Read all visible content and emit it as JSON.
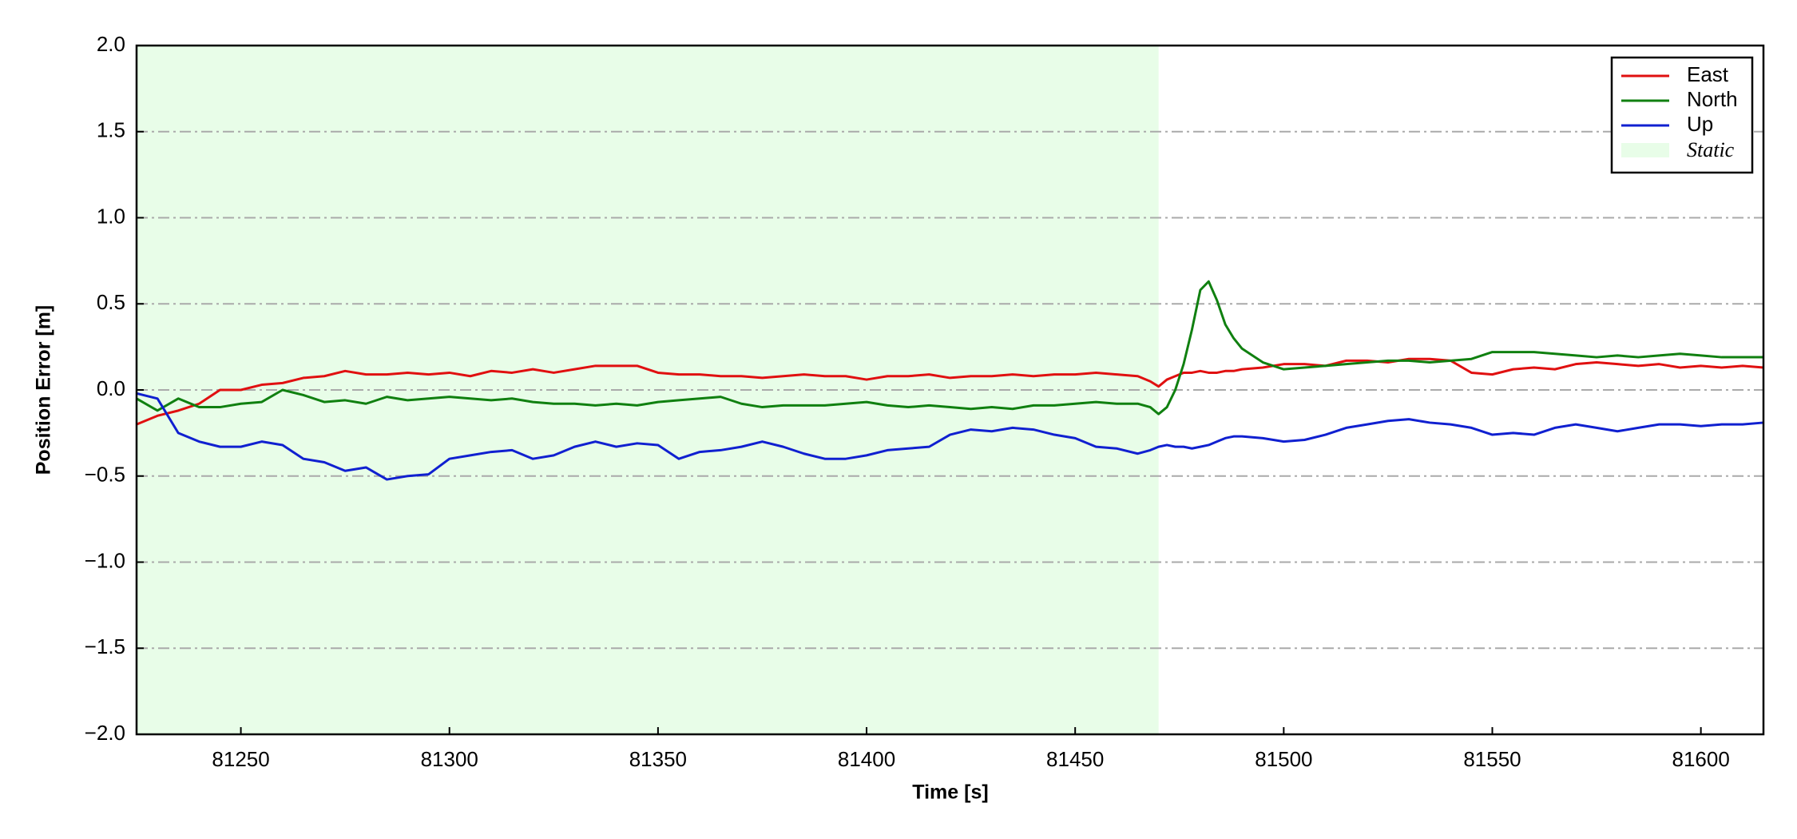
{
  "chart_data": {
    "type": "line",
    "xlabel": "Time [s]",
    "ylabel": "Position Error [m]",
    "xlim": [
      81225,
      81615
    ],
    "ylim": [
      -2.0,
      2.0
    ],
    "xticks": [
      81250,
      81300,
      81350,
      81400,
      81450,
      81500,
      81550,
      81600
    ],
    "yticks": [
      {
        "value": -2.0,
        "label": "−2.0"
      },
      {
        "value": -1.5,
        "label": "−1.5"
      },
      {
        "value": -1.0,
        "label": "−1.0"
      },
      {
        "value": -0.5,
        "label": "−0.5"
      },
      {
        "value": 0.0,
        "label": "0.0"
      },
      {
        "value": 0.5,
        "label": "0.5"
      },
      {
        "value": 1.0,
        "label": "1.0"
      },
      {
        "value": 1.5,
        "label": "1.5"
      },
      {
        "value": 2.0,
        "label": "2.0"
      }
    ],
    "grid": "y",
    "legend": "upper right",
    "shaded_regions": [
      {
        "name": "Static",
        "x": [
          81225,
          81470
        ],
        "color": "#e8fde8"
      }
    ],
    "x": [
      81225,
      81230,
      81235,
      81240,
      81245,
      81250,
      81255,
      81260,
      81265,
      81270,
      81275,
      81280,
      81285,
      81290,
      81295,
      81300,
      81305,
      81310,
      81315,
      81320,
      81325,
      81330,
      81335,
      81340,
      81345,
      81350,
      81355,
      81360,
      81365,
      81370,
      81375,
      81380,
      81385,
      81390,
      81395,
      81400,
      81405,
      81410,
      81415,
      81420,
      81425,
      81430,
      81435,
      81440,
      81445,
      81450,
      81455,
      81460,
      81465,
      81468,
      81470,
      81472,
      81474,
      81476,
      81478,
      81480,
      81482,
      81484,
      81486,
      81488,
      81490,
      81495,
      81500,
      81505,
      81510,
      81515,
      81520,
      81525,
      81530,
      81535,
      81540,
      81545,
      81550,
      81555,
      81560,
      81565,
      81570,
      81575,
      81580,
      81585,
      81590,
      81595,
      81600,
      81605,
      81610,
      81615
    ],
    "series": [
      {
        "name": "East",
        "color": "#e01010",
        "values": [
          -0.2,
          -0.15,
          -0.12,
          -0.08,
          0.0,
          0.0,
          0.03,
          0.04,
          0.07,
          0.08,
          0.11,
          0.09,
          0.09,
          0.1,
          0.09,
          0.1,
          0.08,
          0.11,
          0.1,
          0.12,
          0.1,
          0.12,
          0.14,
          0.14,
          0.14,
          0.1,
          0.09,
          0.09,
          0.08,
          0.08,
          0.07,
          0.08,
          0.09,
          0.08,
          0.08,
          0.06,
          0.08,
          0.08,
          0.09,
          0.07,
          0.08,
          0.08,
          0.09,
          0.08,
          0.09,
          0.09,
          0.1,
          0.09,
          0.08,
          0.05,
          0.02,
          0.06,
          0.08,
          0.1,
          0.1,
          0.11,
          0.1,
          0.1,
          0.11,
          0.11,
          0.12,
          0.13,
          0.15,
          0.15,
          0.14,
          0.17,
          0.17,
          0.16,
          0.18,
          0.18,
          0.17,
          0.1,
          0.09,
          0.12,
          0.13,
          0.12,
          0.15,
          0.16,
          0.15,
          0.14,
          0.15,
          0.13,
          0.14,
          0.13,
          0.14,
          0.13
        ]
      },
      {
        "name": "North",
        "color": "#108010",
        "values": [
          -0.05,
          -0.12,
          -0.05,
          -0.1,
          -0.1,
          -0.08,
          -0.07,
          0.0,
          -0.03,
          -0.07,
          -0.06,
          -0.08,
          -0.04,
          -0.06,
          -0.05,
          -0.04,
          -0.05,
          -0.06,
          -0.05,
          -0.07,
          -0.08,
          -0.08,
          -0.09,
          -0.08,
          -0.09,
          -0.07,
          -0.06,
          -0.05,
          -0.04,
          -0.08,
          -0.1,
          -0.09,
          -0.09,
          -0.09,
          -0.08,
          -0.07,
          -0.09,
          -0.1,
          -0.09,
          -0.1,
          -0.11,
          -0.1,
          -0.11,
          -0.09,
          -0.09,
          -0.08,
          -0.07,
          -0.08,
          -0.08,
          -0.1,
          -0.14,
          -0.1,
          0.0,
          0.15,
          0.35,
          0.58,
          0.63,
          0.52,
          0.38,
          0.3,
          0.24,
          0.16,
          0.12,
          0.13,
          0.14,
          0.15,
          0.16,
          0.17,
          0.17,
          0.16,
          0.17,
          0.18,
          0.22,
          0.22,
          0.22,
          0.21,
          0.2,
          0.19,
          0.2,
          0.19,
          0.2,
          0.21,
          0.2,
          0.19,
          0.19,
          0.19
        ]
      },
      {
        "name": "Up",
        "color": "#1020d0",
        "values": [
          -0.02,
          -0.05,
          -0.25,
          -0.3,
          -0.33,
          -0.33,
          -0.3,
          -0.32,
          -0.4,
          -0.42,
          -0.47,
          -0.45,
          -0.52,
          -0.5,
          -0.49,
          -0.4,
          -0.38,
          -0.36,
          -0.35,
          -0.4,
          -0.38,
          -0.33,
          -0.3,
          -0.33,
          -0.31,
          -0.32,
          -0.4,
          -0.36,
          -0.35,
          -0.33,
          -0.3,
          -0.33,
          -0.37,
          -0.4,
          -0.4,
          -0.38,
          -0.35,
          -0.34,
          -0.33,
          -0.26,
          -0.23,
          -0.24,
          -0.22,
          -0.23,
          -0.26,
          -0.28,
          -0.33,
          -0.34,
          -0.37,
          -0.35,
          -0.33,
          -0.32,
          -0.33,
          -0.33,
          -0.34,
          -0.33,
          -0.32,
          -0.3,
          -0.28,
          -0.27,
          -0.27,
          -0.28,
          -0.3,
          -0.29,
          -0.26,
          -0.22,
          -0.2,
          -0.18,
          -0.17,
          -0.19,
          -0.2,
          -0.22,
          -0.26,
          -0.25,
          -0.26,
          -0.22,
          -0.2,
          -0.22,
          -0.24,
          -0.22,
          -0.2,
          -0.2,
          -0.21,
          -0.2,
          -0.2,
          -0.19
        ]
      }
    ]
  }
}
